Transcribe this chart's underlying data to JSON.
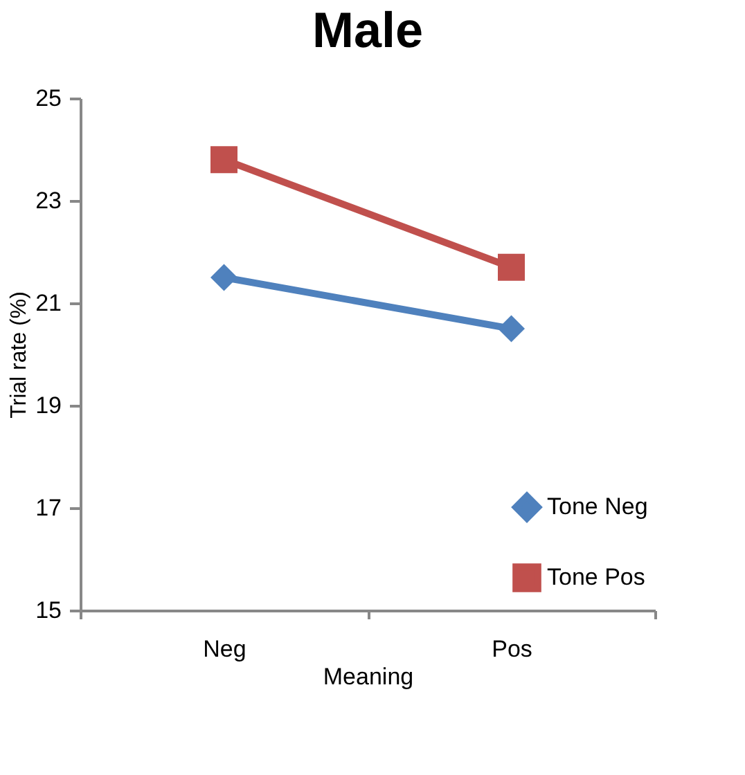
{
  "chart_data": {
    "type": "line",
    "title": "Male",
    "xlabel": "Meaning",
    "ylabel": "Trial rate (%)",
    "categories": [
      "Neg",
      "Pos"
    ],
    "series": [
      {
        "name": "Tone Neg",
        "color": "#4f81bd",
        "marker": "diamond",
        "values": [
          21.5,
          20.5
        ]
      },
      {
        "name": "Tone Pos",
        "color": "#c0504d",
        "marker": "square",
        "values": [
          23.8,
          21.7
        ]
      }
    ],
    "ylim": [
      15,
      25
    ],
    "yticks": [
      15,
      17,
      19,
      21,
      23,
      25
    ],
    "grid": false,
    "legend": "bottom right",
    "line_style": "solid"
  }
}
